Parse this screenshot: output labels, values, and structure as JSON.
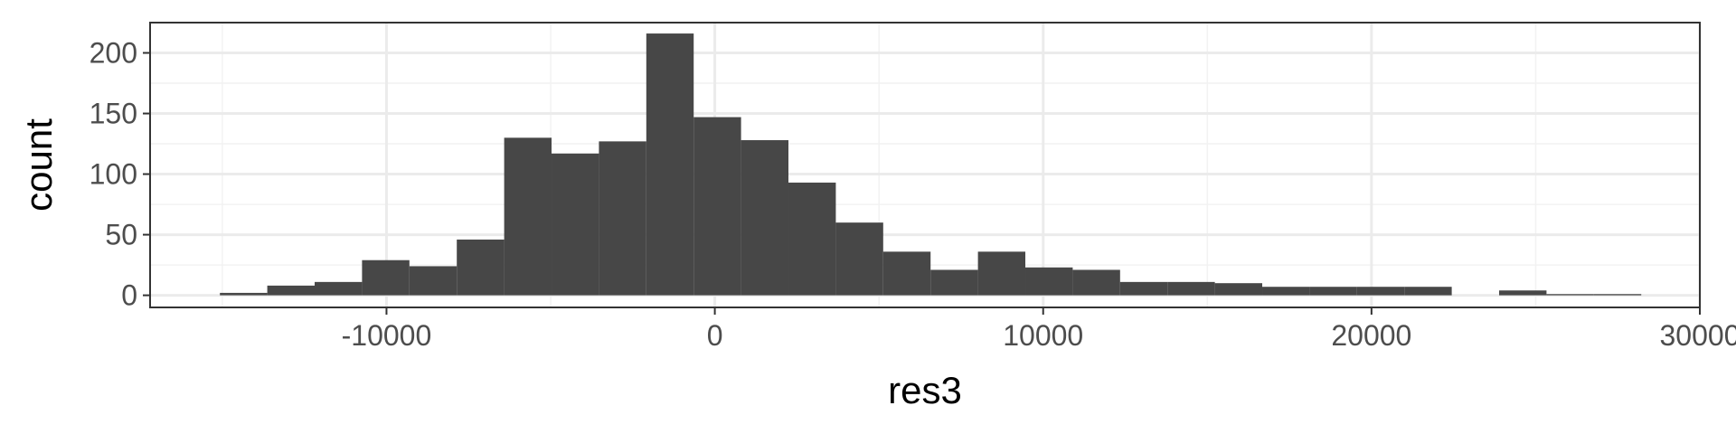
{
  "chart_data": {
    "type": "bar",
    "subtype": "histogram",
    "xlabel": "res3",
    "ylabel": "count",
    "xlim": [
      -17200,
      30000
    ],
    "ylim": [
      -10,
      225
    ],
    "x_ticks": [
      -10000,
      0,
      10000,
      20000,
      30000
    ],
    "x_tick_labels": [
      "-10000",
      "0",
      "10000",
      "20000",
      "30000"
    ],
    "y_ticks": [
      0,
      50,
      100,
      150,
      200
    ],
    "y_tick_labels": [
      "0",
      "50",
      "100",
      "150",
      "200"
    ],
    "grid": true,
    "bin_width": 1443,
    "bins": [
      {
        "x0": -15074,
        "x1": -13631,
        "count": 2
      },
      {
        "x0": -13631,
        "x1": -12188,
        "count": 8
      },
      {
        "x0": -12188,
        "x1": -10745,
        "count": 11
      },
      {
        "x0": -10745,
        "x1": -9302,
        "count": 29
      },
      {
        "x0": -9302,
        "x1": -7859,
        "count": 24
      },
      {
        "x0": -7859,
        "x1": -6416,
        "count": 46
      },
      {
        "x0": -6416,
        "x1": -4973,
        "count": 130
      },
      {
        "x0": -4973,
        "x1": -3530,
        "count": 117
      },
      {
        "x0": -3530,
        "x1": -2087,
        "count": 127
      },
      {
        "x0": -2087,
        "x1": -644,
        "count": 216
      },
      {
        "x0": -644,
        "x1": 799,
        "count": 147
      },
      {
        "x0": 799,
        "x1": 2242,
        "count": 128
      },
      {
        "x0": 2242,
        "x1": 3685,
        "count": 93
      },
      {
        "x0": 3685,
        "x1": 5128,
        "count": 60
      },
      {
        "x0": 5128,
        "x1": 6571,
        "count": 36
      },
      {
        "x0": 6571,
        "x1": 8014,
        "count": 21
      },
      {
        "x0": 8014,
        "x1": 9457,
        "count": 36
      },
      {
        "x0": 9457,
        "x1": 10900,
        "count": 23
      },
      {
        "x0": 10900,
        "x1": 12343,
        "count": 21
      },
      {
        "x0": 12343,
        "x1": 13786,
        "count": 11
      },
      {
        "x0": 13786,
        "x1": 15229,
        "count": 11
      },
      {
        "x0": 15229,
        "x1": 16672,
        "count": 10
      },
      {
        "x0": 16672,
        "x1": 18115,
        "count": 7
      },
      {
        "x0": 18115,
        "x1": 19558,
        "count": 7
      },
      {
        "x0": 19558,
        "x1": 21001,
        "count": 7
      },
      {
        "x0": 21001,
        "x1": 22444,
        "count": 7
      },
      {
        "x0": 22444,
        "x1": 23887,
        "count": 0
      },
      {
        "x0": 23887,
        "x1": 25330,
        "count": 4
      },
      {
        "x0": 25330,
        "x1": 26773,
        "count": 1
      },
      {
        "x0": 26773,
        "x1": 28216,
        "count": 1
      }
    ],
    "colors": {
      "bar": "#474747",
      "panel_border": "#333333",
      "grid_major": "#ebebeb",
      "grid_minor": "#f2f2f2",
      "tick_text": "#4d4d4d",
      "axis_title": "#000000"
    }
  }
}
